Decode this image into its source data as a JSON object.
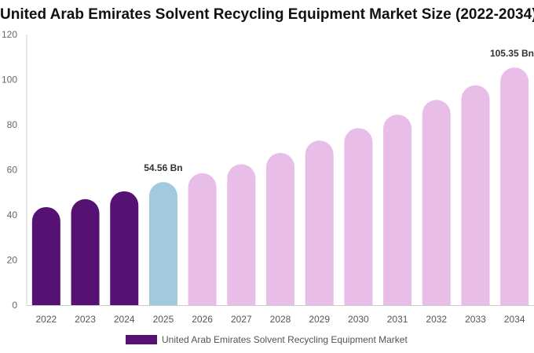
{
  "chart_data": {
    "type": "bar",
    "title": "United Arab Emirates Solvent Recycling Equipment Market Size (2022-2034)",
    "categories": [
      "2022",
      "2023",
      "2024",
      "2025",
      "2026",
      "2027",
      "2028",
      "2029",
      "2030",
      "2031",
      "2032",
      "2033",
      "2034"
    ],
    "series": [
      {
        "name": "United Arab Emirates Solvent Recycling Equipment Market",
        "values": [
          43.5,
          47,
          50.5,
          54.56,
          58.5,
          62.5,
          67.5,
          73,
          78.5,
          84.5,
          91,
          97.5,
          105.35
        ]
      }
    ],
    "bar_colors": [
      "#561273",
      "#561273",
      "#561273",
      "#a3c9df",
      "#e8bde8",
      "#e8bde8",
      "#e8bde8",
      "#e8bde8",
      "#e8bde8",
      "#e8bde8",
      "#e8bde8",
      "#e8bde8",
      "#e8bde8"
    ],
    "data_labels": [
      {
        "index": 3,
        "text": "54.56 Bn"
      },
      {
        "index": 12,
        "text": "105.35 Bn"
      }
    ],
    "yticks": [
      0,
      20,
      40,
      60,
      80,
      100,
      120
    ],
    "ylim": [
      0,
      120
    ],
    "xlabel": "",
    "ylabel": "",
    "grid": false,
    "legend_position": "bottom",
    "legend_color": "#561273"
  }
}
